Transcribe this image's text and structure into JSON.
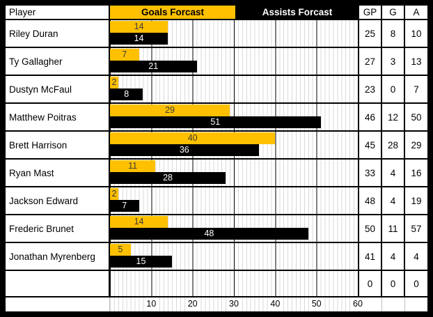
{
  "colors": {
    "goals_bar": "#FFC000",
    "assists_bar": "#000000",
    "grid_minor": "#D9D9D9",
    "grid_major": "#000000",
    "frame_border": "#000000"
  },
  "header": {
    "player": "Player",
    "goals": "Goals Forcast",
    "assists": "Assists Forcast",
    "gp": "GP",
    "g": "G",
    "a": "A"
  },
  "table": {
    "rows": [
      {
        "player": "Riley Duran",
        "goals": 14,
        "assists": 14,
        "gp": 25,
        "g": 8,
        "a": 10
      },
      {
        "player": "Ty Gallagher",
        "goals": 7,
        "assists": 21,
        "gp": 27,
        "g": 3,
        "a": 13
      },
      {
        "player": "Dustyn McFaul",
        "goals": 2,
        "assists": 8,
        "gp": 23,
        "g": 0,
        "a": 7
      },
      {
        "player": "Matthew Poitras",
        "goals": 29,
        "assists": 51,
        "gp": 46,
        "g": 12,
        "a": 50
      },
      {
        "player": "Brett Harrison",
        "goals": 40,
        "assists": 36,
        "gp": 45,
        "g": 28,
        "a": 29
      },
      {
        "player": "Ryan Mast",
        "goals": 11,
        "assists": 28,
        "gp": 33,
        "g": 4,
        "a": 16
      },
      {
        "player": "Jackson Edward",
        "goals": 2,
        "assists": 7,
        "gp": 48,
        "g": 4,
        "a": 19
      },
      {
        "player": "Frederic Brunet",
        "goals": 14,
        "assists": 48,
        "gp": 50,
        "g": 11,
        "a": 57
      },
      {
        "player": "Jonathan Myrenberg",
        "goals": 5,
        "assists": 15,
        "gp": 41,
        "g": 4,
        "a": 4
      },
      {
        "player": "",
        "goals": null,
        "assists": null,
        "gp": 0,
        "g": 0,
        "a": 0
      }
    ]
  },
  "axis": {
    "ticks": [
      10,
      20,
      30,
      40,
      50,
      60
    ],
    "max": 60
  },
  "chart_data": {
    "type": "bar",
    "orientation": "horizontal",
    "title": "",
    "categories": [
      "Riley Duran",
      "Ty Gallagher",
      "Dustyn McFaul",
      "Matthew Poitras",
      "Brett Harrison",
      "Ryan Mast",
      "Jackson Edward",
      "Frederic Brunet",
      "Jonathan Myrenberg"
    ],
    "series": [
      {
        "name": "Goals Forcast",
        "color": "#FFC000",
        "values": [
          14,
          7,
          2,
          29,
          40,
          11,
          2,
          14,
          5
        ]
      },
      {
        "name": "Assists Forcast",
        "color": "#000000",
        "values": [
          14,
          21,
          8,
          51,
          36,
          28,
          7,
          48,
          15
        ]
      }
    ],
    "extra_columns": {
      "GP": [
        25,
        27,
        23,
        46,
        45,
        33,
        48,
        50,
        41,
        0
      ],
      "G": [
        8,
        3,
        0,
        12,
        28,
        4,
        4,
        11,
        4,
        0
      ],
      "A": [
        10,
        13,
        7,
        50,
        29,
        16,
        19,
        57,
        4,
        0
      ]
    },
    "xlim": [
      0,
      60
    ],
    "x_ticks": [
      10,
      20,
      30,
      40,
      50,
      60
    ],
    "grid": "minor every 1 unit (light gray), major every 10 units (black)",
    "data_labels": "inside bars",
    "legend_position": "header row (colored header cells act as legend)"
  }
}
